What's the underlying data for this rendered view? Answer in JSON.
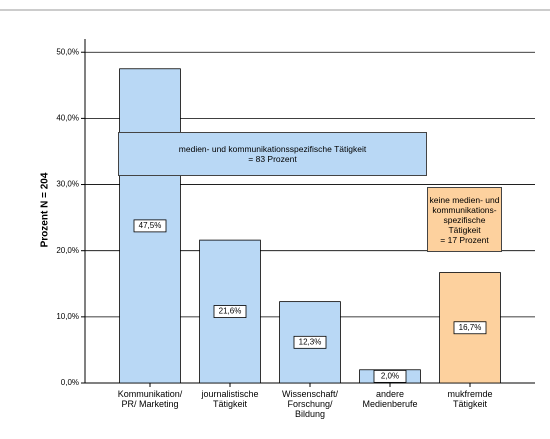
{
  "chart_data": {
    "type": "bar",
    "y_label": "Prozent  N = 204",
    "categories": [
      "Kommunikation/\nPR/ Marketing",
      "journalistische\nTätigkeit",
      "Wissenschaft/\nForschung/\nBildung",
      "andere\nMedienberufe",
      "mukfremde\nTätigkeit"
    ],
    "values": [
      47.5,
      21.6,
      12.3,
      2.0,
      16.7
    ],
    "value_labels": [
      "47,5%",
      "21,6%",
      "12,3%",
      "2,0%",
      "16,7%"
    ],
    "colors": [
      "#b9d8f5",
      "#b9d8f5",
      "#b9d8f5",
      "#b9d8f5",
      "#fdd19e"
    ],
    "ylim": [
      0,
      52
    ],
    "yticks": [
      {
        "value": 0,
        "label": "0,0%"
      },
      {
        "value": 10,
        "label": "10,0%"
      },
      {
        "value": 20,
        "label": "20,0%"
      },
      {
        "value": 30,
        "label": "30,0%"
      },
      {
        "value": 40,
        "label": "40,0%"
      },
      {
        "value": 50,
        "label": "50,0%"
      }
    ],
    "grid": true,
    "annotations": [
      {
        "text": "medien- und kommunikationsspezifische Tätigkeit\n= 83 Prozent",
        "color": "#b9d8f5"
      },
      {
        "text": "keine medien- und\nkommunikations-\nspezifische\nTätigkeit\n= 17 Prozent",
        "color": "#fdd19e"
      }
    ]
  }
}
